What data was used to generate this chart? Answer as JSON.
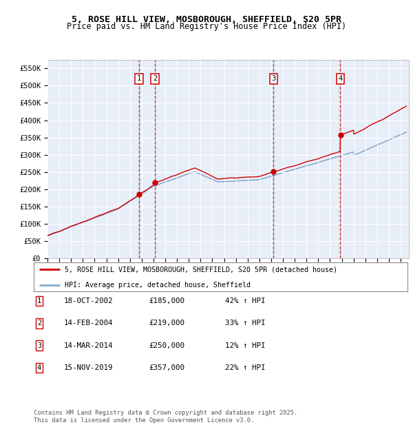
{
  "title_line1": "5, ROSE HILL VIEW, MOSBOROUGH, SHEFFIELD, S20 5PR",
  "title_line2": "Price paid vs. HM Land Registry's House Price Index (HPI)",
  "ylim": [
    0,
    575000
  ],
  "yticks": [
    0,
    50000,
    100000,
    150000,
    200000,
    250000,
    300000,
    350000,
    400000,
    450000,
    500000,
    550000
  ],
  "ytick_labels": [
    "£0",
    "£50K",
    "£100K",
    "£150K",
    "£200K",
    "£250K",
    "£300K",
    "£350K",
    "£400K",
    "£450K",
    "£500K",
    "£550K"
  ],
  "xlim_start": 1995.0,
  "xlim_end": 2025.7,
  "property_color": "#cc0000",
  "hpi_color": "#88aacc",
  "transactions": [
    {
      "num": 1,
      "date": "18-OCT-2002",
      "price": 185000,
      "price_str": "£185,000",
      "pct": "42%",
      "x_year": 2002.79
    },
    {
      "num": 2,
      "date": "14-FEB-2004",
      "price": 219000,
      "price_str": "£219,000",
      "pct": "33%",
      "x_year": 2004.12
    },
    {
      "num": 3,
      "date": "14-MAR-2014",
      "price": 250000,
      "price_str": "£250,000",
      "pct": "12%",
      "x_year": 2014.2
    },
    {
      "num": 4,
      "date": "15-NOV-2019",
      "price": 357000,
      "price_str": "£357,000",
      "pct": "22%",
      "x_year": 2019.87
    }
  ],
  "legend_property": "5, ROSE HILL VIEW, MOSBOROUGH, SHEFFIELD, S20 5PR (detached house)",
  "legend_hpi": "HPI: Average price, detached house, Sheffield",
  "footnote_line1": "Contains HM Land Registry data © Crown copyright and database right 2025.",
  "footnote_line2": "This data is licensed under the Open Government Licence v3.0."
}
